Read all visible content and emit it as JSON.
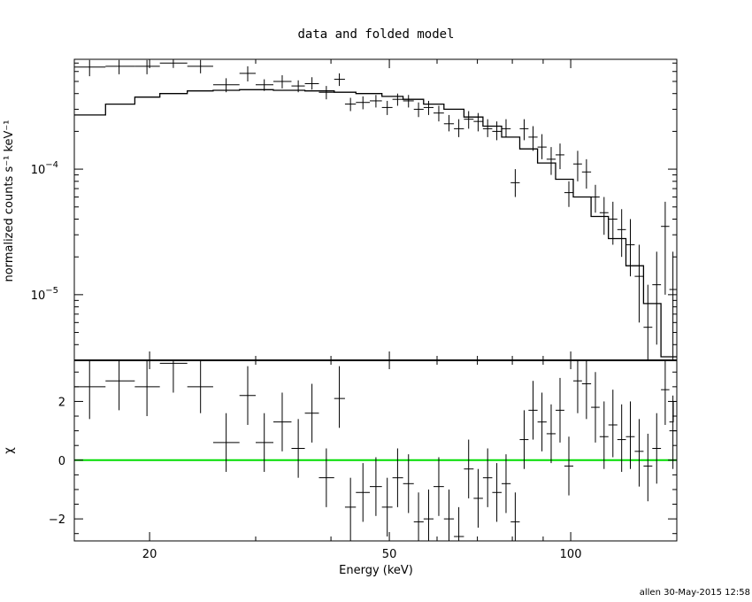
{
  "chart_data": {
    "type": "scatter",
    "title": "data and folded model",
    "footer": "allen 30-May-2015 12:58",
    "xlabel": "Energy (keV)",
    "xscale": "log",
    "xlim": [
      15,
      150
    ],
    "xticks": [
      {
        "value": 20,
        "label": "20"
      },
      {
        "value": 50,
        "label": "50"
      },
      {
        "value": 100,
        "label": "100"
      }
    ],
    "colors": {
      "data": "#000000",
      "model": "#000000",
      "zero_line": "#00dd00"
    },
    "top_panel": {
      "ylabel": "normalized counts s⁻¹ keV⁻¹",
      "yscale": "log",
      "ylim": [
        3e-06,
        0.00075
      ],
      "yticks": [
        {
          "value": 0.0001,
          "label_base": "10",
          "label_exp": "−4"
        },
        {
          "value": 1e-05,
          "label_base": "10",
          "label_exp": "−5"
        }
      ]
    },
    "bottom_panel": {
      "ylabel": "χ",
      "ylim": [
        -2.75,
        3.4
      ],
      "yticks": [
        {
          "value": 2,
          "label": "2"
        },
        {
          "value": 0,
          "label": "0"
        },
        {
          "value": -2,
          "label": "−2"
        }
      ],
      "reference_line": 0
    },
    "series": [
      {
        "name": "data",
        "points": [
          {
            "x": 15.9,
            "xlo": 15,
            "xhi": 16.9,
            "y": 0.00065,
            "ylo": 0.00055,
            "yhi": 0.00074,
            "chi": 2.5,
            "chilo": 1.4,
            "chihi": 3.4
          },
          {
            "x": 17.8,
            "xlo": 16.9,
            "xhi": 18.9,
            "y": 0.00066,
            "ylo": 0.00057,
            "yhi": 0.00074,
            "chi": 2.7,
            "chilo": 1.7,
            "chihi": 3.4
          },
          {
            "x": 19.8,
            "xlo": 18.9,
            "xhi": 20.8,
            "y": 0.00066,
            "ylo": 0.00057,
            "yhi": 0.00074,
            "chi": 2.5,
            "chilo": 1.5,
            "chihi": 3.4
          },
          {
            "x": 21.9,
            "xlo": 20.8,
            "xhi": 23.1,
            "y": 0.0007,
            "ylo": 0.00064,
            "yhi": 0.00075,
            "chi": 3.3,
            "chilo": 2.3,
            "chihi": 3.4
          },
          {
            "x": 24.3,
            "xlo": 23.1,
            "xhi": 25.5,
            "y": 0.00066,
            "ylo": 0.00058,
            "yhi": 0.00074,
            "chi": 2.5,
            "chilo": 1.6,
            "chihi": 3.4
          },
          {
            "x": 26.8,
            "xlo": 25.5,
            "xhi": 28.2,
            "y": 0.00047,
            "ylo": 0.00041,
            "yhi": 0.00053,
            "chi": 0.6,
            "chilo": -0.4,
            "chihi": 1.6
          },
          {
            "x": 29.1,
            "xlo": 28.2,
            "xhi": 30.0,
            "y": 0.00058,
            "ylo": 0.0005,
            "yhi": 0.00066,
            "chi": 2.2,
            "chilo": 1.2,
            "chihi": 3.2
          },
          {
            "x": 31.0,
            "xlo": 30.0,
            "xhi": 32.1,
            "y": 0.00047,
            "ylo": 0.00042,
            "yhi": 0.00052,
            "chi": 0.6,
            "chilo": -0.4,
            "chihi": 1.6
          },
          {
            "x": 33.2,
            "xlo": 32.1,
            "xhi": 34.4,
            "y": 0.0005,
            "ylo": 0.00044,
            "yhi": 0.00056,
            "chi": 1.3,
            "chilo": 0.3,
            "chihi": 2.3
          },
          {
            "x": 35.3,
            "xlo": 34.4,
            "xhi": 36.2,
            "y": 0.00046,
            "ylo": 0.00041,
            "yhi": 0.00051,
            "chi": 0.4,
            "chilo": -0.6,
            "chihi": 1.4
          },
          {
            "x": 37.2,
            "xlo": 36.2,
            "xhi": 38.2,
            "y": 0.00048,
            "ylo": 0.00043,
            "yhi": 0.00054,
            "chi": 1.6,
            "chilo": 0.6,
            "chihi": 2.6
          },
          {
            "x": 39.3,
            "xlo": 38.2,
            "xhi": 40.5,
            "y": 0.00041,
            "ylo": 0.00036,
            "yhi": 0.00046,
            "chi": -0.6,
            "chilo": -1.6,
            "chihi": 0.4
          },
          {
            "x": 41.3,
            "xlo": 40.5,
            "xhi": 42.2,
            "y": 0.00052,
            "ylo": 0.00046,
            "yhi": 0.00058,
            "chi": 2.1,
            "chilo": 1.1,
            "chihi": 3.2
          },
          {
            "x": 43.1,
            "xlo": 42.2,
            "xhi": 44.0,
            "y": 0.00033,
            "ylo": 0.00029,
            "yhi": 0.00037,
            "chi": -1.6,
            "chilo": -2.75,
            "chihi": -0.6
          },
          {
            "x": 45.2,
            "xlo": 44.0,
            "xhi": 46.4,
            "y": 0.00034,
            "ylo": 0.0003,
            "yhi": 0.00038,
            "chi": -1.1,
            "chilo": -2.1,
            "chihi": -0.1
          },
          {
            "x": 47.5,
            "xlo": 46.4,
            "xhi": 48.6,
            "y": 0.00035,
            "ylo": 0.00031,
            "yhi": 0.00039,
            "chi": -0.9,
            "chilo": -1.9,
            "chihi": 0.1
          },
          {
            "x": 49.6,
            "xlo": 48.6,
            "xhi": 50.6,
            "y": 0.00031,
            "ylo": 0.00027,
            "yhi": 0.00035,
            "chi": -1.6,
            "chilo": -2.6,
            "chihi": -0.6
          },
          {
            "x": 51.6,
            "xlo": 50.6,
            "xhi": 52.7,
            "y": 0.00036,
            "ylo": 0.00032,
            "yhi": 0.0004,
            "chi": -0.6,
            "chilo": -1.6,
            "chihi": 0.4
          },
          {
            "x": 53.8,
            "xlo": 52.7,
            "xhi": 54.9,
            "y": 0.00035,
            "ylo": 0.00031,
            "yhi": 0.00039,
            "chi": -0.8,
            "chilo": -1.8,
            "chihi": 0.2
          },
          {
            "x": 55.9,
            "xlo": 54.9,
            "xhi": 57.0,
            "y": 0.0003,
            "ylo": 0.00026,
            "yhi": 0.00034,
            "chi": -2.1,
            "chilo": -2.75,
            "chihi": -1.1
          },
          {
            "x": 58.1,
            "xlo": 57.0,
            "xhi": 59.2,
            "y": 0.00031,
            "ylo": 0.00027,
            "yhi": 0.00035,
            "chi": -2.0,
            "chilo": -2.75,
            "chihi": -1.0
          },
          {
            "x": 60.4,
            "xlo": 59.2,
            "xhi": 61.6,
            "y": 0.00028,
            "ylo": 0.00024,
            "yhi": 0.00032,
            "chi": -0.9,
            "chilo": -1.9,
            "chihi": 0.1
          },
          {
            "x": 62.8,
            "xlo": 61.6,
            "xhi": 64.0,
            "y": 0.00023,
            "ylo": 0.0002,
            "yhi": 0.00027,
            "chi": -2.0,
            "chilo": -2.75,
            "chihi": -1.0
          },
          {
            "x": 65.2,
            "xlo": 64.0,
            "xhi": 66.5,
            "y": 0.00021,
            "ylo": 0.00018,
            "yhi": 0.00025,
            "chi": -2.6,
            "chilo": -2.75,
            "chihi": -1.6
          },
          {
            "x": 67.7,
            "xlo": 66.5,
            "xhi": 69.0,
            "y": 0.00025,
            "ylo": 0.00021,
            "yhi": 0.00029,
            "chi": -0.3,
            "chilo": -1.3,
            "chihi": 0.7
          },
          {
            "x": 70.2,
            "xlo": 69.0,
            "xhi": 71.5,
            "y": 0.00024,
            "ylo": 0.0002,
            "yhi": 0.00028,
            "chi": -1.3,
            "chilo": -2.3,
            "chihi": -0.3
          },
          {
            "x": 72.8,
            "xlo": 71.5,
            "xhi": 74.1,
            "y": 0.00021,
            "ylo": 0.00018,
            "yhi": 0.00025,
            "chi": -0.6,
            "chilo": -1.6,
            "chihi": 0.4
          },
          {
            "x": 75.4,
            "xlo": 74.1,
            "xhi": 76.8,
            "y": 0.0002,
            "ylo": 0.00017,
            "yhi": 0.00024,
            "chi": -1.1,
            "chilo": -2.1,
            "chihi": -0.1
          },
          {
            "x": 78.1,
            "xlo": 76.8,
            "xhi": 79.5,
            "y": 0.00021,
            "ylo": 0.00018,
            "yhi": 0.00025,
            "chi": -0.8,
            "chilo": -1.8,
            "chihi": 0.2
          },
          {
            "x": 80.9,
            "xlo": 79.5,
            "xhi": 82.3,
            "y": 7.8e-05,
            "ylo": 6e-05,
            "yhi": 0.0001,
            "chi": -2.1,
            "chilo": -2.75,
            "chihi": -1.1
          },
          {
            "x": 83.7,
            "xlo": 82.3,
            "xhi": 85.1,
            "y": 0.00021,
            "ylo": 0.00017,
            "yhi": 0.00025,
            "chi": 0.7,
            "chilo": -0.3,
            "chihi": 1.7
          },
          {
            "x": 86.6,
            "xlo": 85.1,
            "xhi": 88.1,
            "y": 0.00018,
            "ylo": 0.00014,
            "yhi": 0.00022,
            "chi": 1.7,
            "chilo": 0.7,
            "chihi": 2.7
          },
          {
            "x": 89.6,
            "xlo": 88.1,
            "xhi": 91.2,
            "y": 0.00015,
            "ylo": 0.00012,
            "yhi": 0.00019,
            "chi": 1.3,
            "chilo": 0.3,
            "chihi": 2.3
          },
          {
            "x": 92.8,
            "xlo": 91.2,
            "xhi": 94.4,
            "y": 0.00012,
            "ylo": 9e-05,
            "yhi": 0.00015,
            "chi": 0.9,
            "chilo": -0.1,
            "chihi": 1.9
          },
          {
            "x": 96.0,
            "xlo": 94.4,
            "xhi": 97.6,
            "y": 0.00013,
            "ylo": 0.0001,
            "yhi": 0.00016,
            "chi": 1.7,
            "chilo": 0.6,
            "chihi": 2.8
          },
          {
            "x": 99.3,
            "xlo": 97.6,
            "xhi": 101.0,
            "y": 6.5e-05,
            "ylo": 5e-05,
            "yhi": 8e-05,
            "chi": -0.2,
            "chilo": -1.2,
            "chihi": 0.8
          },
          {
            "x": 102.7,
            "xlo": 101.0,
            "xhi": 104.4,
            "y": 0.00011,
            "ylo": 8e-05,
            "yhi": 0.00014,
            "chi": 2.7,
            "chilo": 1.6,
            "chihi": 3.4
          },
          {
            "x": 106.2,
            "xlo": 104.4,
            "xhi": 108.1,
            "y": 9.5e-05,
            "ylo": 7e-05,
            "yhi": 0.00012,
            "chi": 2.6,
            "chilo": 1.4,
            "chihi": 3.4
          },
          {
            "x": 109.9,
            "xlo": 108.1,
            "xhi": 111.7,
            "y": 6e-05,
            "ylo": 4.5e-05,
            "yhi": 7.5e-05,
            "chi": 1.8,
            "chilo": 0.6,
            "chihi": 3.0
          },
          {
            "x": 113.6,
            "xlo": 111.7,
            "xhi": 115.5,
            "y": 4.5e-05,
            "ylo": 3e-05,
            "yhi": 6e-05,
            "chi": 0.8,
            "chilo": -0.3,
            "chihi": 2.0
          },
          {
            "x": 117.5,
            "xlo": 115.5,
            "xhi": 119.5,
            "y": 4e-05,
            "ylo": 2.5e-05,
            "yhi": 5.5e-05,
            "chi": 1.2,
            "chilo": 0.1,
            "chihi": 2.4
          },
          {
            "x": 121.5,
            "xlo": 119.5,
            "xhi": 123.5,
            "y": 3.3e-05,
            "ylo": 2e-05,
            "yhi": 4.8e-05,
            "chi": 0.7,
            "chilo": -0.4,
            "chihi": 1.9
          },
          {
            "x": 125.6,
            "xlo": 123.5,
            "xhi": 127.7,
            "y": 2.5e-05,
            "ylo": 1.4e-05,
            "yhi": 4e-05,
            "chi": 0.8,
            "chilo": -0.3,
            "chihi": 2.0
          },
          {
            "x": 129.9,
            "xlo": 127.7,
            "xhi": 132.1,
            "y": 1.4e-05,
            "ylo": 6e-06,
            "yhi": 2.5e-05,
            "chi": 0.3,
            "chilo": -0.9,
            "chihi": 1.4
          },
          {
            "x": 134.3,
            "xlo": 132.1,
            "xhi": 136.6,
            "y": 5.5e-06,
            "ylo": 3e-06,
            "yhi": 1.2e-05,
            "chi": -0.2,
            "chilo": -1.4,
            "chihi": 0.9
          },
          {
            "x": 138.9,
            "xlo": 136.6,
            "xhi": 141.2,
            "y": 1.2e-05,
            "ylo": 4e-06,
            "yhi": 2.2e-05,
            "chi": 0.4,
            "chilo": -0.8,
            "chihi": 1.6
          },
          {
            "x": 143.5,
            "xlo": 141.2,
            "xhi": 145.8,
            "y": 3.5e-05,
            "ylo": 1e-05,
            "yhi": 5.5e-05,
            "chi": 2.4,
            "chilo": 1.2,
            "chihi": 3.4
          },
          {
            "x": 147.8,
            "xlo": 145.8,
            "xhi": 150.0,
            "y": 1.1e-05,
            "ylo": 3e-06,
            "yhi": 2.2e-05,
            "chi": 1.0,
            "chilo": -0.3,
            "chihi": 2.2
          }
        ]
      },
      {
        "name": "folded model",
        "steps": [
          {
            "x0": 15.0,
            "x1": 16.9,
            "y": 0.00027
          },
          {
            "x0": 16.9,
            "x1": 18.9,
            "y": 0.00033
          },
          {
            "x0": 18.9,
            "x1": 20.8,
            "y": 0.000375
          },
          {
            "x0": 20.8,
            "x1": 23.1,
            "y": 0.0004
          },
          {
            "x0": 23.1,
            "x1": 25.5,
            "y": 0.00042
          },
          {
            "x0": 25.5,
            "x1": 28.2,
            "y": 0.000425
          },
          {
            "x0": 28.2,
            "x1": 32.1,
            "y": 0.00043
          },
          {
            "x0": 32.1,
            "x1": 36.2,
            "y": 0.000425
          },
          {
            "x0": 36.2,
            "x1": 40.5,
            "y": 0.00042
          },
          {
            "x0": 40.5,
            "x1": 44.0,
            "y": 0.00041
          },
          {
            "x0": 44.0,
            "x1": 48.6,
            "y": 0.0004
          },
          {
            "x0": 48.6,
            "x1": 52.7,
            "y": 0.00038
          },
          {
            "x0": 52.7,
            "x1": 57.0,
            "y": 0.00036
          },
          {
            "x0": 57.0,
            "x1": 61.6,
            "y": 0.00033
          },
          {
            "x0": 61.6,
            "x1": 66.5,
            "y": 0.0003
          },
          {
            "x0": 66.5,
            "x1": 71.5,
            "y": 0.00026
          },
          {
            "x0": 71.5,
            "x1": 76.8,
            "y": 0.00022
          },
          {
            "x0": 76.8,
            "x1": 82.3,
            "y": 0.00018
          },
          {
            "x0": 82.3,
            "x1": 88.1,
            "y": 0.000145
          },
          {
            "x0": 88.1,
            "x1": 94.4,
            "y": 0.000112
          },
          {
            "x0": 94.4,
            "x1": 101.0,
            "y": 8.3e-05
          },
          {
            "x0": 101.0,
            "x1": 108.1,
            "y": 6e-05
          },
          {
            "x0": 108.1,
            "x1": 115.5,
            "y": 4.2e-05
          },
          {
            "x0": 115.5,
            "x1": 123.5,
            "y": 2.8e-05
          },
          {
            "x0": 123.5,
            "x1": 132.1,
            "y": 1.7e-05
          },
          {
            "x0": 132.1,
            "x1": 141.2,
            "y": 8.5e-06
          },
          {
            "x0": 141.2,
            "x1": 150.0,
            "y": 3.2e-06
          }
        ]
      }
    ]
  }
}
